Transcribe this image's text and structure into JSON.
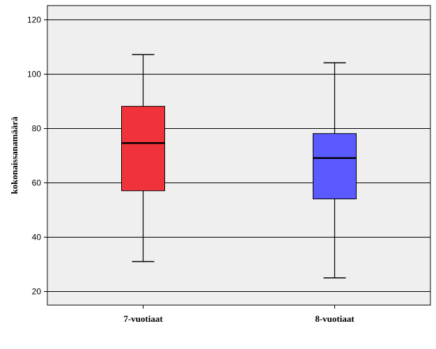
{
  "chart_data": {
    "type": "box",
    "title": "",
    "xlabel": "",
    "ylabel": "kokonaissanamäärä",
    "ylim": [
      15,
      125
    ],
    "yticks": [
      20,
      40,
      60,
      80,
      100,
      120
    ],
    "grid": "horizontal",
    "legend": "none",
    "colors": {
      "plot_background": "#efefef",
      "grid": "#000000",
      "whisker": "#000000"
    },
    "categories": [
      "7-vuotiaat",
      "8-vuotiaat"
    ],
    "series": [
      {
        "category": "7-vuotiaat",
        "min": 31,
        "q1": 57,
        "median": 74.5,
        "q3": 88,
        "max": 107,
        "color": "#f0323a"
      },
      {
        "category": "8-vuotiaat",
        "min": 25,
        "q1": 54,
        "median": 69,
        "q3": 78,
        "max": 104,
        "color": "#5a5aff"
      }
    ]
  }
}
